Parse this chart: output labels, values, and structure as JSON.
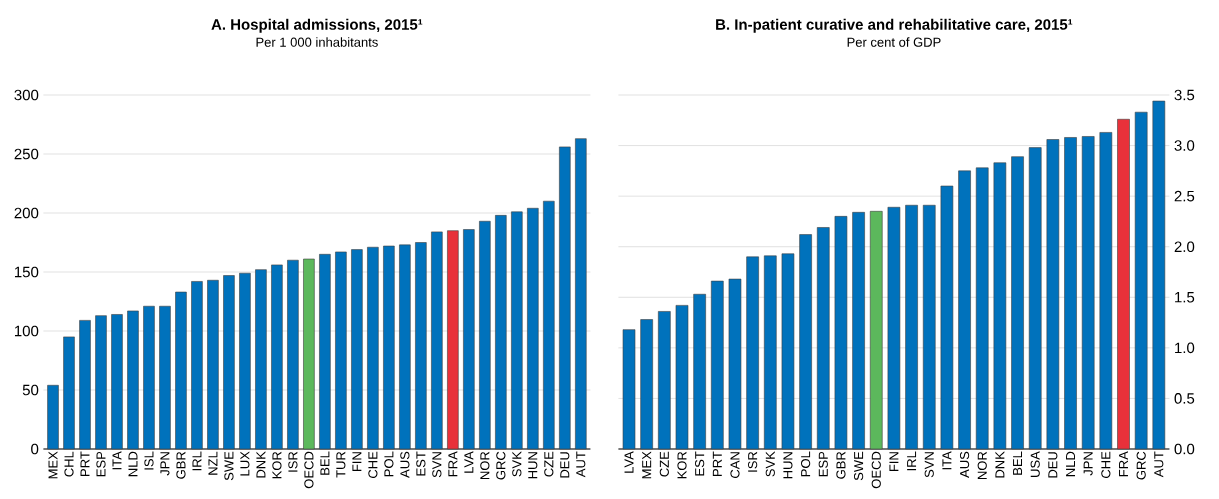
{
  "chart_data": [
    {
      "type": "bar",
      "title": "A. Hospital admissions, 2015¹",
      "subtitle": "Per 1 000 inhabitants",
      "categories": [
        "MEX",
        "CHL",
        "PRT",
        "ESP",
        "ITA",
        "NLD",
        "ISL",
        "JPN",
        "GBR",
        "IRL",
        "NZL",
        "SWE",
        "LUX",
        "DNK",
        "KOR",
        "ISR",
        "OECD",
        "BEL",
        "TUR",
        "FIN",
        "CHE",
        "POL",
        "AUS",
        "EST",
        "SVN",
        "FRA",
        "LVA",
        "NOR",
        "GRC",
        "SVK",
        "HUN",
        "CZE",
        "DEU",
        "AUT"
      ],
      "values": [
        54,
        95,
        109,
        113,
        114,
        117,
        121,
        121,
        133,
        142,
        143,
        147,
        149,
        152,
        156,
        160,
        161,
        165,
        167,
        169,
        171,
        172,
        173,
        175,
        184,
        185,
        186,
        193,
        198,
        201,
        204,
        210,
        256,
        263
      ],
      "colors": [
        "#0072bc",
        "#0072bc",
        "#0072bc",
        "#0072bc",
        "#0072bc",
        "#0072bc",
        "#0072bc",
        "#0072bc",
        "#0072bc",
        "#0072bc",
        "#0072bc",
        "#0072bc",
        "#0072bc",
        "#0072bc",
        "#0072bc",
        "#0072bc",
        "#5cb85c",
        "#0072bc",
        "#0072bc",
        "#0072bc",
        "#0072bc",
        "#0072bc",
        "#0072bc",
        "#0072bc",
        "#0072bc",
        "#e8313a",
        "#0072bc",
        "#0072bc",
        "#0072bc",
        "#0072bc",
        "#0072bc",
        "#0072bc",
        "#0072bc",
        "#0072bc"
      ],
      "ylim": [
        0,
        300
      ],
      "yticks": [
        0,
        50,
        100,
        150,
        200,
        250,
        300
      ],
      "grid": "y"
    },
    {
      "type": "bar",
      "title": "B. In-patient curative and rehabilitative care, 2015¹",
      "subtitle": "Per cent of GDP",
      "categories": [
        "LVA",
        "MEX",
        "CZE",
        "KOR",
        "EST",
        "PRT",
        "CAN",
        "ISR",
        "SVK",
        "HUN",
        "POL",
        "ESP",
        "GBR",
        "SWE",
        "OECD",
        "FIN",
        "IRL",
        "SVN",
        "ITA",
        "AUS",
        "NOR",
        "DNK",
        "BEL",
        "USA",
        "DEU",
        "NLD",
        "JPN",
        "CHE",
        "FRA",
        "GRC",
        "AUT"
      ],
      "values": [
        1.18,
        1.28,
        1.36,
        1.42,
        1.53,
        1.66,
        1.68,
        1.9,
        1.91,
        1.93,
        2.12,
        2.19,
        2.3,
        2.34,
        2.35,
        2.39,
        2.41,
        2.41,
        2.6,
        2.75,
        2.78,
        2.83,
        2.89,
        2.98,
        3.06,
        3.08,
        3.09,
        3.13,
        3.26,
        3.33,
        3.44
      ],
      "colors": [
        "#0072bc",
        "#0072bc",
        "#0072bc",
        "#0072bc",
        "#0072bc",
        "#0072bc",
        "#0072bc",
        "#0072bc",
        "#0072bc",
        "#0072bc",
        "#0072bc",
        "#0072bc",
        "#0072bc",
        "#0072bc",
        "#5cb85c",
        "#0072bc",
        "#0072bc",
        "#0072bc",
        "#0072bc",
        "#0072bc",
        "#0072bc",
        "#0072bc",
        "#0072bc",
        "#0072bc",
        "#0072bc",
        "#0072bc",
        "#0072bc",
        "#0072bc",
        "#e8313a",
        "#0072bc",
        "#0072bc"
      ],
      "ylim": [
        0,
        3.5
      ],
      "yticks": [
        {
          "value": 0,
          "label": "0.0"
        },
        0.5,
        {
          "value": 1,
          "label": "1.0"
        },
        1.5,
        {
          "value": 2,
          "label": "2.0"
        },
        2.5,
        {
          "value": 3,
          "label": "3.0"
        },
        3.5
      ],
      "grid": "y"
    }
  ]
}
